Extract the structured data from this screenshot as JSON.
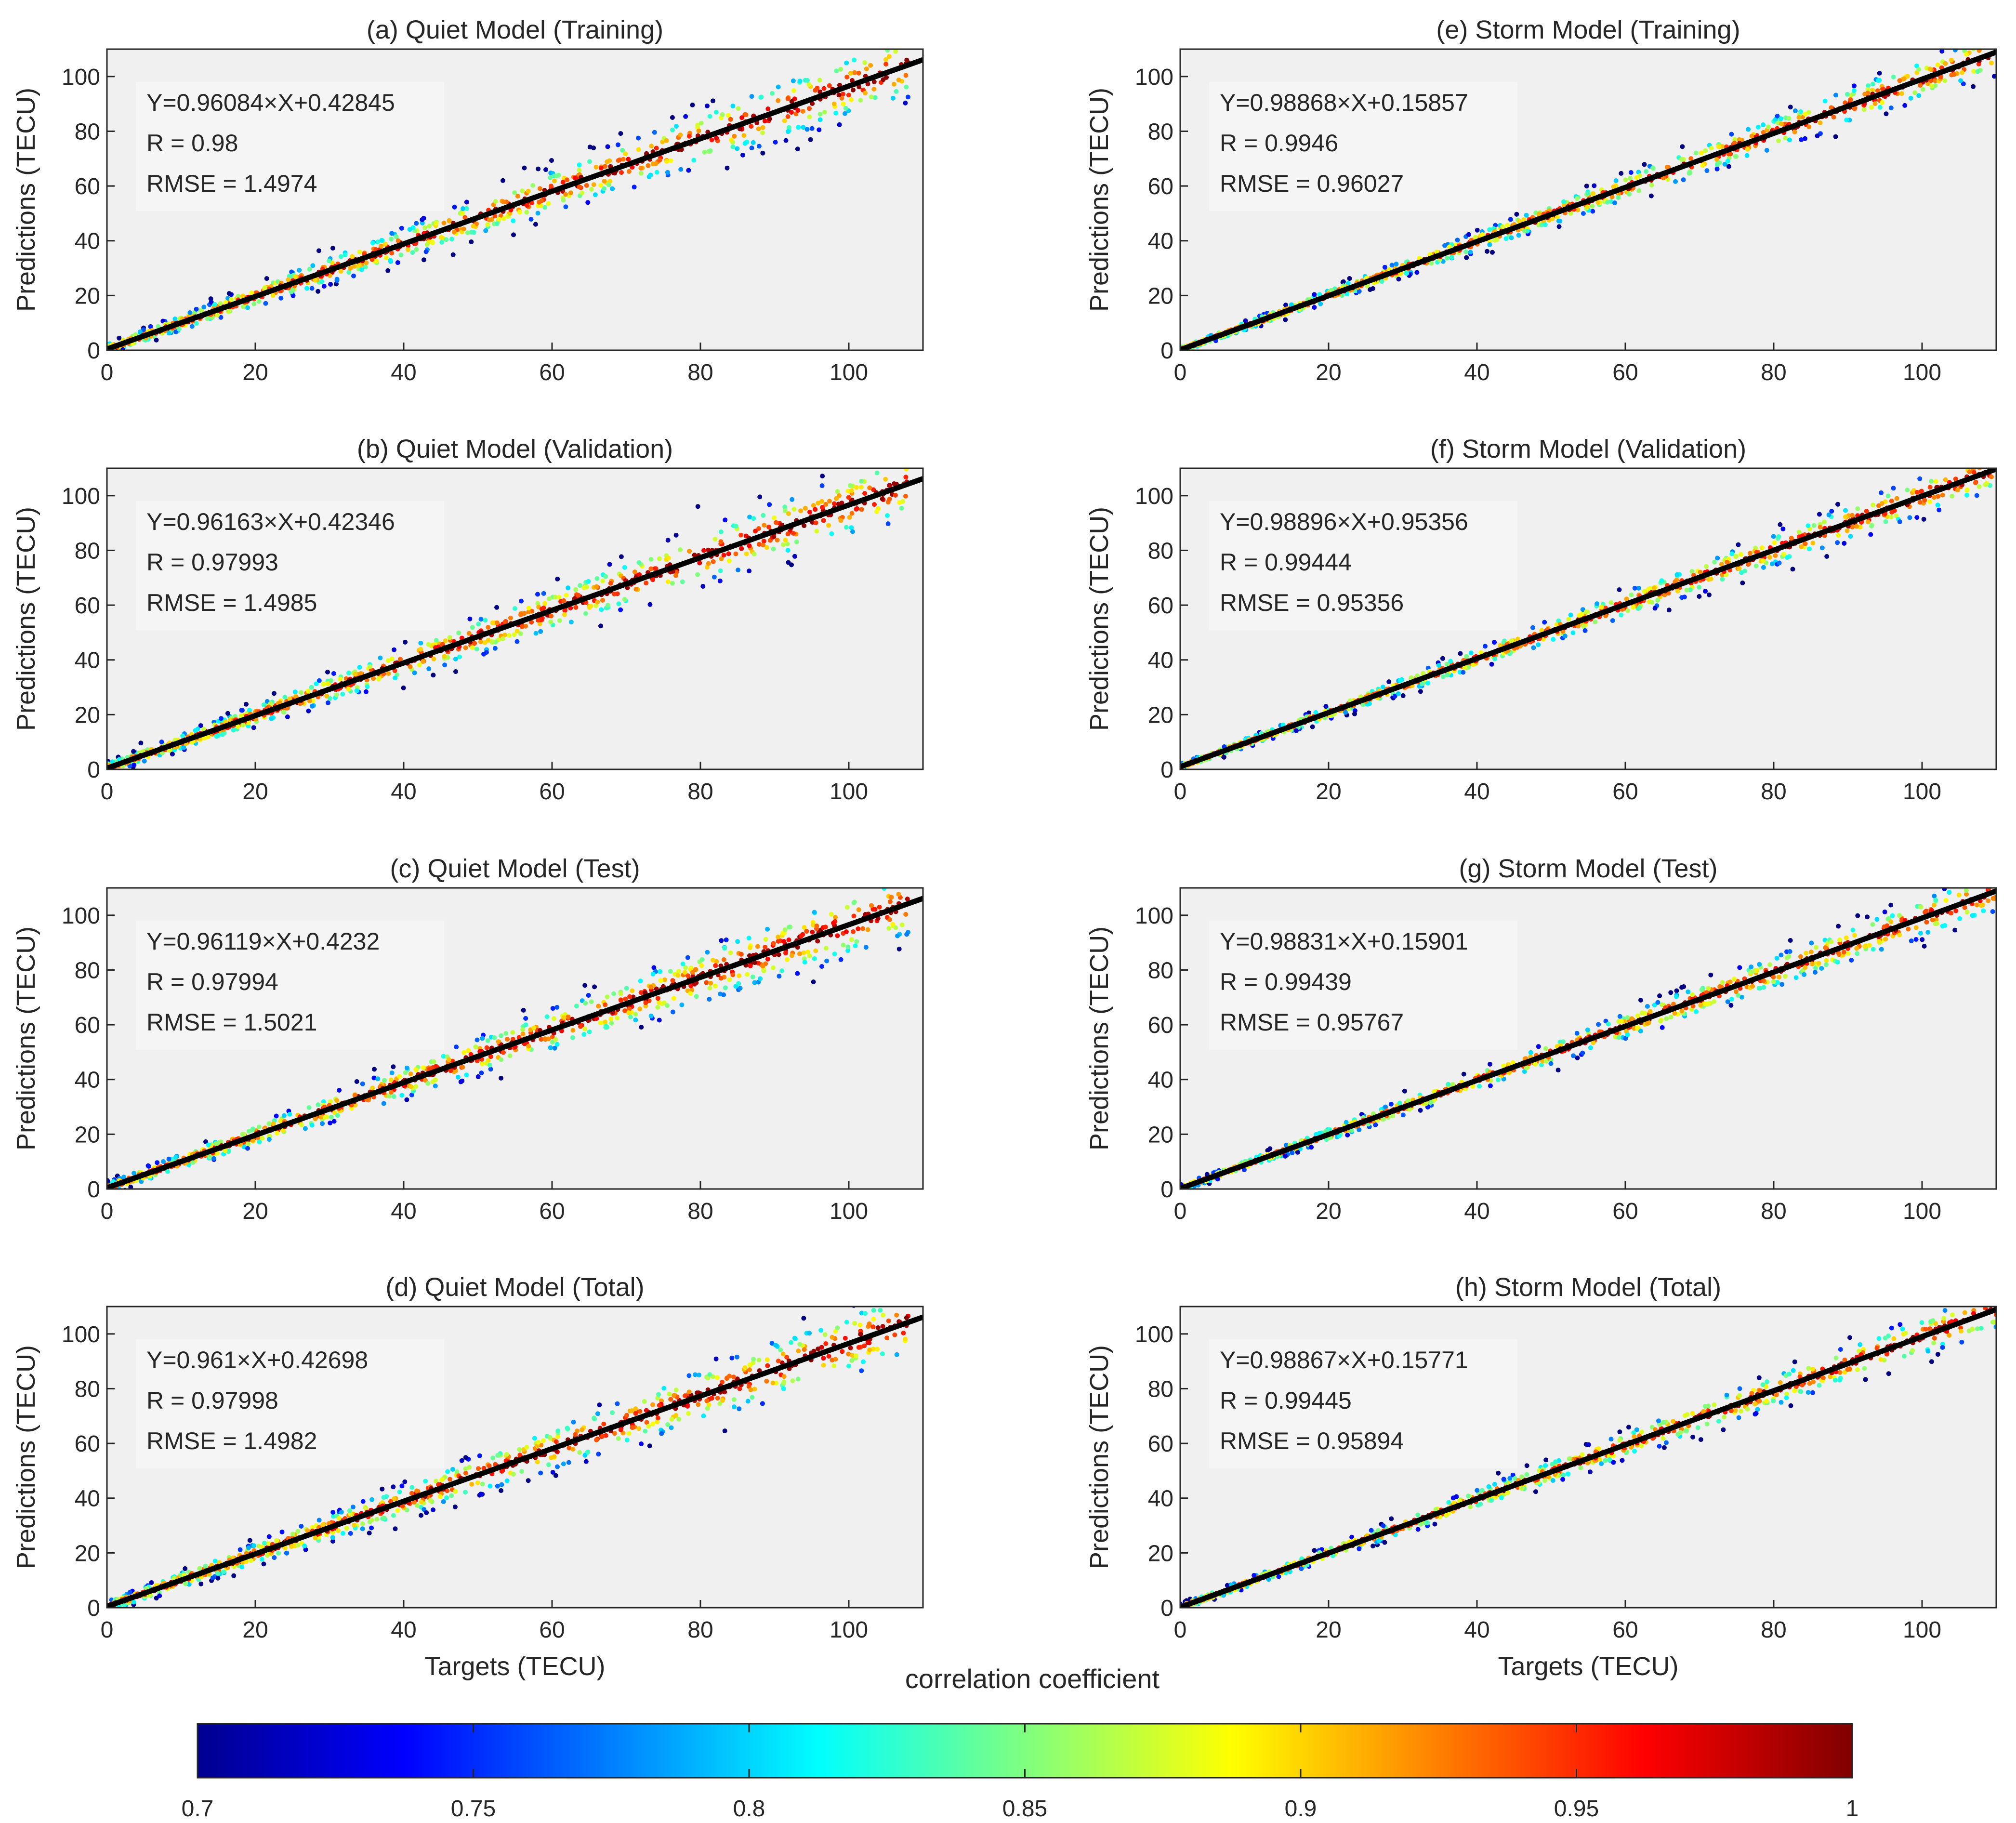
{
  "chart_data": [
    {
      "panel": "a",
      "type": "scatter",
      "title": "(a) Quiet Model (Training)",
      "xlabel": "",
      "ylabel": "Predictions (TECU)",
      "xlim": [
        0,
        110
      ],
      "ylim": [
        0,
        110
      ],
      "xticks": [
        "0",
        "20",
        "40",
        "60",
        "80",
        "100"
      ],
      "yticks": [
        "0",
        "20",
        "40",
        "60",
        "80",
        "100"
      ],
      "fit": {
        "slope": 0.96084,
        "intercept": 0.42845
      },
      "spread": 1.0,
      "xmax": 108,
      "stats": [
        "Y=0.96084×X+0.42845",
        "R = 0.98",
        "RMSE = 1.4974"
      ]
    },
    {
      "panel": "b",
      "type": "scatter",
      "title": "(b) Quiet Model (Validation)",
      "xlabel": "",
      "ylabel": "Predictions (TECU)",
      "xlim": [
        0,
        110
      ],
      "ylim": [
        0,
        110
      ],
      "xticks": [
        "0",
        "20",
        "40",
        "60",
        "80",
        "100"
      ],
      "yticks": [
        "0",
        "20",
        "40",
        "60",
        "80",
        "100"
      ],
      "fit": {
        "slope": 0.96163,
        "intercept": 0.42346
      },
      "spread": 1.0,
      "xmax": 108,
      "stats": [
        "Y=0.96163×X+0.42346",
        "R = 0.97993",
        "RMSE = 1.4985"
      ]
    },
    {
      "panel": "c",
      "type": "scatter",
      "title": "(c) Quiet Model (Test)",
      "xlabel": "",
      "ylabel": "Predictions (TECU)",
      "xlim": [
        0,
        110
      ],
      "ylim": [
        0,
        110
      ],
      "xticks": [
        "0",
        "20",
        "40",
        "60",
        "80",
        "100"
      ],
      "yticks": [
        "0",
        "20",
        "40",
        "60",
        "80",
        "100"
      ],
      "fit": {
        "slope": 0.96119,
        "intercept": 0.4232
      },
      "spread": 1.0,
      "xmax": 108,
      "stats": [
        "Y=0.96119×X+0.4232",
        "R = 0.97994",
        "RMSE = 1.5021"
      ]
    },
    {
      "panel": "d",
      "type": "scatter",
      "title": "(d) Quiet Model (Total)",
      "xlabel": "Targets (TECU)",
      "ylabel": "Predictions (TECU)",
      "xlim": [
        0,
        110
      ],
      "ylim": [
        0,
        110
      ],
      "xticks": [
        "0",
        "20",
        "40",
        "60",
        "80",
        "100"
      ],
      "yticks": [
        "0",
        "20",
        "40",
        "60",
        "80",
        "100"
      ],
      "fit": {
        "slope": 0.961,
        "intercept": 0.42698
      },
      "spread": 1.0,
      "xmax": 108,
      "stats": [
        "Y=0.961×X+0.42698",
        "R = 0.97998",
        "RMSE = 1.4982"
      ]
    },
    {
      "panel": "e",
      "type": "scatter",
      "title": "(e) Storm Model (Training)",
      "xlabel": "",
      "ylabel": "Predictions (TECU)",
      "xlim": [
        0,
        110
      ],
      "ylim": [
        0,
        110
      ],
      "xticks": [
        "0",
        "20",
        "40",
        "60",
        "80",
        "100"
      ],
      "yticks": [
        "0",
        "20",
        "40",
        "60",
        "80",
        "100"
      ],
      "fit": {
        "slope": 0.98868,
        "intercept": 0.15857
      },
      "spread": 0.6,
      "xmax": 110,
      "stats": [
        "Y=0.98868×X+0.15857",
        "R = 0.9946",
        "RMSE = 0.96027"
      ]
    },
    {
      "panel": "f",
      "type": "scatter",
      "title": "(f) Storm Model (Validation)",
      "xlabel": "",
      "ylabel": "Predictions (TECU)",
      "xlim": [
        0,
        110
      ],
      "ylim": [
        0,
        110
      ],
      "xticks": [
        "0",
        "20",
        "40",
        "60",
        "80",
        "100"
      ],
      "yticks": [
        "0",
        "20",
        "40",
        "60",
        "80",
        "100"
      ],
      "fit": {
        "slope": 0.98896,
        "intercept": 0.95356
      },
      "spread": 0.6,
      "xmax": 110,
      "stats": [
        "Y=0.98896×X+0.95356",
        "R = 0.99444",
        "RMSE = 0.95356"
      ]
    },
    {
      "panel": "g",
      "type": "scatter",
      "title": "(g) Storm Model (Test)",
      "xlabel": "",
      "ylabel": "Predictions (TECU)",
      "xlim": [
        0,
        110
      ],
      "ylim": [
        0,
        110
      ],
      "xticks": [
        "0",
        "20",
        "40",
        "60",
        "80",
        "100"
      ],
      "yticks": [
        "0",
        "20",
        "40",
        "60",
        "80",
        "100"
      ],
      "fit": {
        "slope": 0.98831,
        "intercept": 0.15901
      },
      "spread": 0.6,
      "xmax": 110,
      "stats": [
        "Y=0.98831×X+0.15901",
        "R = 0.99439",
        "RMSE = 0.95767"
      ]
    },
    {
      "panel": "h",
      "type": "scatter",
      "title": "(h) Storm Model (Total)",
      "xlabel": "Targets (TECU)",
      "ylabel": "Predictions (TECU)",
      "xlim": [
        0,
        110
      ],
      "ylim": [
        0,
        110
      ],
      "xticks": [
        "0",
        "20",
        "40",
        "60",
        "80",
        "100"
      ],
      "yticks": [
        "0",
        "20",
        "40",
        "60",
        "80",
        "100"
      ],
      "fit": {
        "slope": 0.98867,
        "intercept": 0.15771
      },
      "spread": 0.6,
      "xmax": 110,
      "stats": [
        "Y=0.98867×X+0.15771",
        "R = 0.99445",
        "RMSE = 0.95894"
      ]
    }
  ],
  "colorbar": {
    "label": "correlation coefficient",
    "ticks": [
      "0.7",
      "0.75",
      "0.8",
      "0.85",
      "0.9",
      "0.95",
      "1"
    ],
    "range": [
      0.7,
      1.0
    ],
    "colormap": "jet"
  },
  "colors": {
    "plot_background": "#f0f0f0",
    "fit_line": "#000000",
    "axis": "#262626"
  }
}
